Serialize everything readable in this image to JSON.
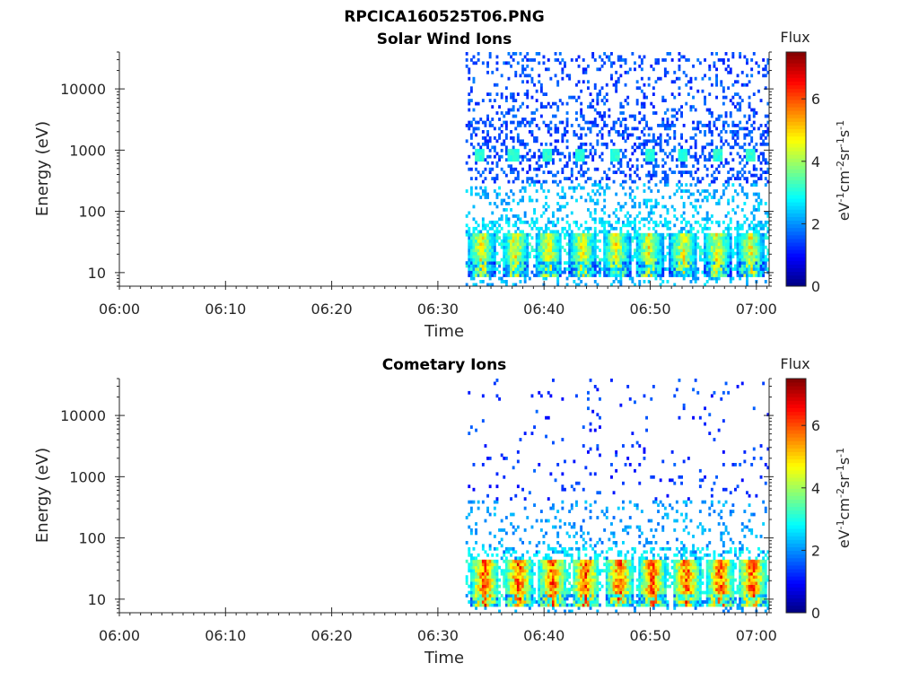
{
  "figure": {
    "title_line1": "RPCICA160525T06.PNG"
  },
  "colorbar_units_label": "eV-1cm-2sr-1s-1",
  "chart_data": [
    {
      "type": "heatmap",
      "title": "Solar Wind Ions",
      "xlabel": "Time",
      "ylabel": "Energy (eV)",
      "x_tick_labels": [
        "06:00",
        "06:10",
        "06:20",
        "06:30",
        "06:40",
        "06:50",
        "07:00"
      ],
      "x_range_minutes": [
        0,
        61.2
      ],
      "y_scale": "log",
      "y_tick_labels": [
        "10",
        "100",
        "1000",
        "10000"
      ],
      "y_tick_values": [
        10,
        100,
        1000,
        10000
      ],
      "ylim": [
        6,
        40000
      ],
      "data_start_minutes": 32.6,
      "colorbar": {
        "label": "Flux",
        "ticks": [
          "0",
          "2",
          "4",
          "6"
        ],
        "range": [
          0,
          7.5
        ],
        "colormap": "jet"
      },
      "features": [
        {
          "center_minutes": [
            34.0,
            37.2,
            40.3,
            43.5,
            46.7,
            49.8,
            53.0,
            56.2,
            59.3
          ],
          "energy_eV": [
            15,
            45
          ],
          "peak_flux": 5.0,
          "kind": "low-energy band"
        },
        {
          "center_minutes": [
            33.9,
            37.0,
            40.1,
            43.3,
            46.5,
            49.8,
            53.0,
            56.2,
            59.3
          ],
          "energy_eV": [
            700,
            1000
          ],
          "peak_flux": 3.0,
          "kind": "solar wind peak"
        },
        {
          "energy_eV": [
            1000,
            30000
          ],
          "peak_flux": 1.5,
          "kind": "scattered background"
        }
      ]
    },
    {
      "type": "heatmap",
      "title": "Cometary Ions",
      "xlabel": "Time",
      "ylabel": "Energy (eV)",
      "x_tick_labels": [
        "06:00",
        "06:10",
        "06:20",
        "06:30",
        "06:40",
        "06:50",
        "07:00"
      ],
      "x_range_minutes": [
        0,
        61.2
      ],
      "y_scale": "log",
      "y_tick_labels": [
        "10",
        "100",
        "1000",
        "10000"
      ],
      "y_tick_values": [
        10,
        100,
        1000,
        10000
      ],
      "ylim": [
        6,
        40000
      ],
      "data_start_minutes": 32.6,
      "colorbar": {
        "label": "Flux",
        "ticks": [
          "0",
          "2",
          "4",
          "6"
        ],
        "range": [
          0,
          7.5
        ],
        "colormap": "jet"
      },
      "features": [
        {
          "center_minutes": [
            34.3,
            37.5,
            40.7,
            43.8,
            47.0,
            50.1,
            53.3,
            56.5,
            59.5
          ],
          "energy_eV": [
            12,
            45
          ],
          "peak_flux": 6.5,
          "kind": "low-energy band"
        },
        {
          "energy_eV": [
            40,
            300
          ],
          "peak_flux": 2.0,
          "kind": "scattered"
        },
        {
          "energy_eV": [
            300,
            25000
          ],
          "peak_flux": 1.0,
          "kind": "sparse background"
        }
      ]
    }
  ]
}
